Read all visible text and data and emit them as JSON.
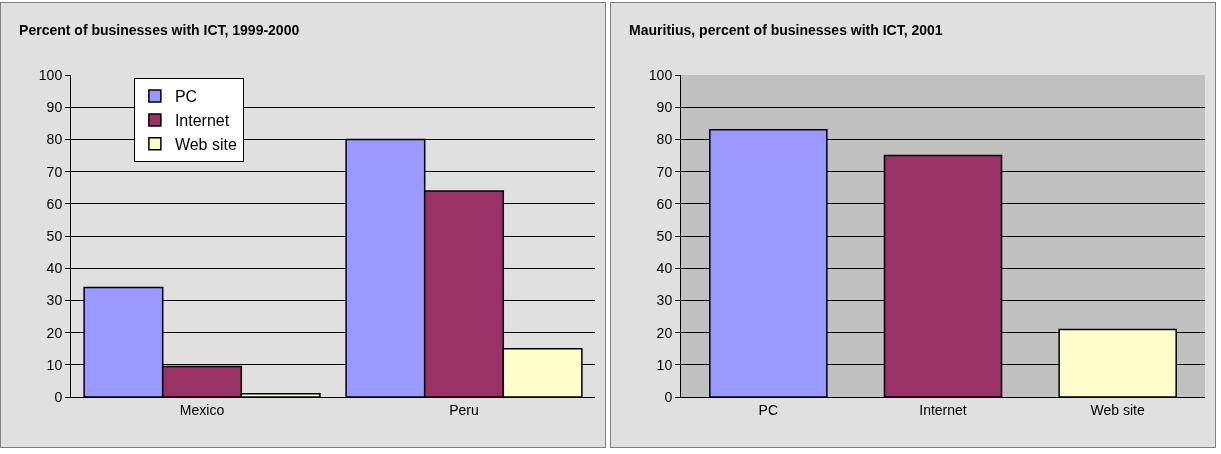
{
  "chart_data": [
    {
      "type": "bar",
      "title": "Percent of businesses with ICT, 1999-2000",
      "categories": [
        "Mexico",
        "Peru"
      ],
      "series": [
        {
          "name": "PC",
          "color": "#9999ff",
          "values": [
            34,
            80
          ]
        },
        {
          "name": "Internet",
          "color": "#993366",
          "values": [
            9.5,
            64
          ]
        },
        {
          "name": "Web site",
          "color": "#ffffcc",
          "values": [
            1,
            15
          ]
        }
      ],
      "ylim": [
        0,
        100
      ],
      "yticks": [
        0,
        10,
        20,
        30,
        40,
        50,
        60,
        70,
        80,
        90,
        100
      ],
      "grid": "y",
      "legend": "top left"
    },
    {
      "type": "bar",
      "title": "Mauritius, percent of businesses with ICT, 2001",
      "categories": [
        "PC",
        "Internet",
        "Web site"
      ],
      "values": [
        83,
        75,
        21
      ],
      "colors": [
        "#9999ff",
        "#993366",
        "#ffffcc"
      ],
      "ylim": [
        0,
        100
      ],
      "yticks": [
        0,
        10,
        20,
        30,
        40,
        50,
        60,
        70,
        80,
        90,
        100
      ],
      "grid": "y"
    }
  ]
}
